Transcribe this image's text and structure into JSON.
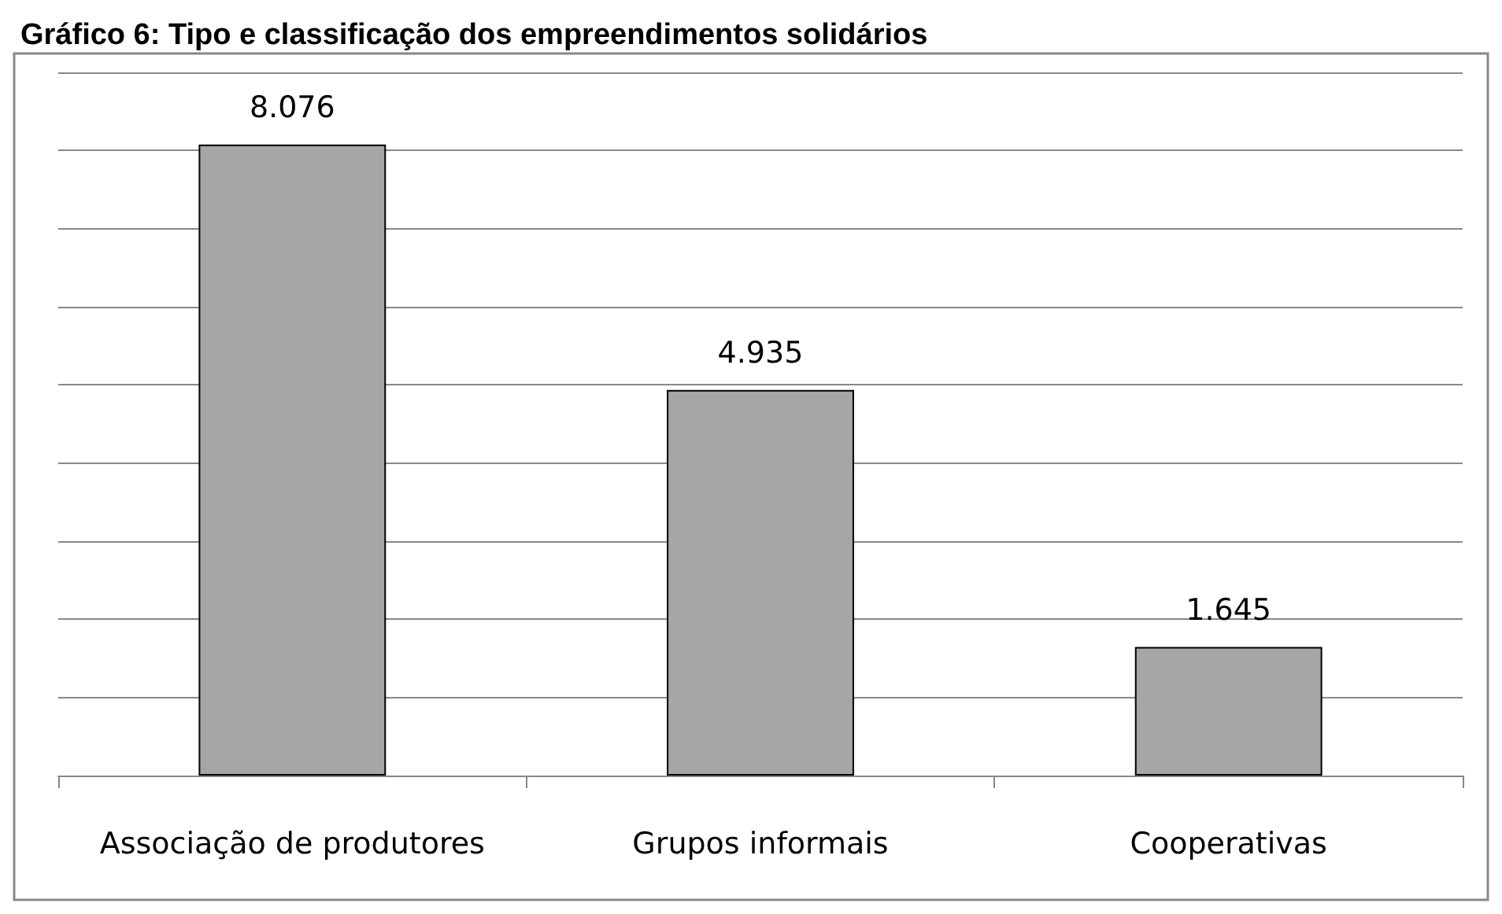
{
  "chart_data": {
    "type": "bar",
    "title": "Gráfico 6: Tipo e classificação dos empreendimentos solidários",
    "categories": [
      "Associação de produtores",
      "Grupos informais",
      "Cooperativas"
    ],
    "values": [
      8076,
      4935,
      1645
    ],
    "value_labels": [
      "8.076",
      "4.935",
      "1.645"
    ],
    "color": "#a6a6a6",
    "ylim": [
      0,
      9000
    ],
    "yticks": [
      {
        "value": 0,
        "label": null
      },
      {
        "value": 1000,
        "label": null
      },
      {
        "value": 2000,
        "label": null
      },
      {
        "value": 3000,
        "label": null
      },
      {
        "value": 4000,
        "label": null
      },
      {
        "value": 5000,
        "label": null
      },
      {
        "value": 6000,
        "label": null
      },
      {
        "value": 7000,
        "label": null
      },
      {
        "value": 8000,
        "label": null
      },
      {
        "value": 9000,
        "label": null
      }
    ],
    "grid": "y",
    "tick_labels": "x"
  }
}
